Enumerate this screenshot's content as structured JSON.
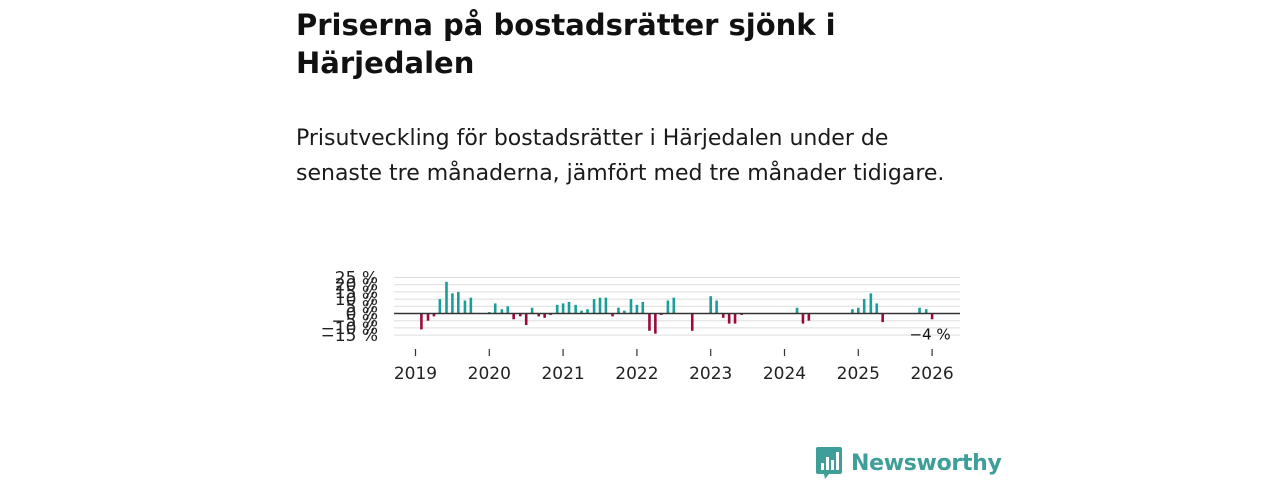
{
  "title": "Priserna på bostadsrätter sjönk i Härjedalen",
  "subtitle": "Prisutveckling för bostadsrätter i Härjedalen under de senaste tre månaderna, jämfört med tre månader tidigare.",
  "brand": {
    "name": "Newsworthy",
    "icon": "newsworthy-logo-icon"
  },
  "colors": {
    "positive": "#1a9e97",
    "negative": "#9c0a3c",
    "grid": "#dddddd",
    "zero": "#333333",
    "text": "#222222",
    "brand": "#3f9f98"
  },
  "chart_data": {
    "type": "bar",
    "title": "Priserna på bostadsrätter sjönk i Härjedalen",
    "xlabel": "",
    "ylabel": "",
    "ylim": [
      -15,
      27
    ],
    "grid": true,
    "y_ticks": [
      25,
      20,
      15,
      10,
      5,
      0,
      -5,
      -10,
      -15
    ],
    "y_tick_labels": [
      "25 %",
      "20 %",
      "15 %",
      "10 %",
      "5 %",
      "0 %",
      "−5 %",
      "−10 %",
      "−15 %"
    ],
    "x_ticks": [
      "2019",
      "2020",
      "2021",
      "2022",
      "2023",
      "2024",
      "2025",
      "2026"
    ],
    "annotation": "−4 %",
    "series": [
      {
        "name": "Prisutveckling",
        "points": [
          {
            "x": 2019.08,
            "y": -11
          },
          {
            "x": 2019.17,
            "y": -5
          },
          {
            "x": 2019.25,
            "y": -2
          },
          {
            "x": 2019.33,
            "y": 10
          },
          {
            "x": 2019.42,
            "y": 22
          },
          {
            "x": 2019.5,
            "y": 14
          },
          {
            "x": 2019.58,
            "y": 15
          },
          {
            "x": 2019.67,
            "y": 9
          },
          {
            "x": 2019.75,
            "y": 11
          },
          {
            "x": 2020.0,
            "y": 1
          },
          {
            "x": 2020.08,
            "y": 7
          },
          {
            "x": 2020.17,
            "y": 3
          },
          {
            "x": 2020.25,
            "y": 5
          },
          {
            "x": 2020.33,
            "y": -4
          },
          {
            "x": 2020.42,
            "y": -2
          },
          {
            "x": 2020.5,
            "y": -8
          },
          {
            "x": 2020.58,
            "y": 4
          },
          {
            "x": 2020.67,
            "y": -2
          },
          {
            "x": 2020.75,
            "y": -3
          },
          {
            "x": 2020.83,
            "y": -1
          },
          {
            "x": 2020.92,
            "y": 6
          },
          {
            "x": 2021.0,
            "y": 7
          },
          {
            "x": 2021.08,
            "y": 8
          },
          {
            "x": 2021.17,
            "y": 6
          },
          {
            "x": 2021.25,
            "y": 2
          },
          {
            "x": 2021.33,
            "y": 3
          },
          {
            "x": 2021.42,
            "y": 10
          },
          {
            "x": 2021.5,
            "y": 11
          },
          {
            "x": 2021.58,
            "y": 11
          },
          {
            "x": 2021.67,
            "y": -2
          },
          {
            "x": 2021.75,
            "y": 4
          },
          {
            "x": 2021.83,
            "y": 2
          },
          {
            "x": 2021.92,
            "y": 10
          },
          {
            "x": 2022.0,
            "y": 6
          },
          {
            "x": 2022.08,
            "y": 8
          },
          {
            "x": 2022.17,
            "y": -12
          },
          {
            "x": 2022.25,
            "y": -14
          },
          {
            "x": 2022.33,
            "y": -1
          },
          {
            "x": 2022.42,
            "y": 9
          },
          {
            "x": 2022.5,
            "y": 11
          },
          {
            "x": 2022.75,
            "y": -12
          },
          {
            "x": 2023.0,
            "y": 12
          },
          {
            "x": 2023.08,
            "y": 9
          },
          {
            "x": 2023.17,
            "y": -3
          },
          {
            "x": 2023.25,
            "y": -7
          },
          {
            "x": 2023.33,
            "y": -7
          },
          {
            "x": 2023.42,
            "y": -1
          },
          {
            "x": 2024.17,
            "y": 4
          },
          {
            "x": 2024.25,
            "y": -7
          },
          {
            "x": 2024.33,
            "y": -5
          },
          {
            "x": 2024.92,
            "y": 3
          },
          {
            "x": 2025.0,
            "y": 4
          },
          {
            "x": 2025.08,
            "y": 10
          },
          {
            "x": 2025.17,
            "y": 14
          },
          {
            "x": 2025.25,
            "y": 7
          },
          {
            "x": 2025.33,
            "y": -6
          },
          {
            "x": 2025.83,
            "y": 4
          },
          {
            "x": 2025.92,
            "y": 3
          },
          {
            "x": 2026.0,
            "y": -4
          }
        ]
      }
    ]
  }
}
